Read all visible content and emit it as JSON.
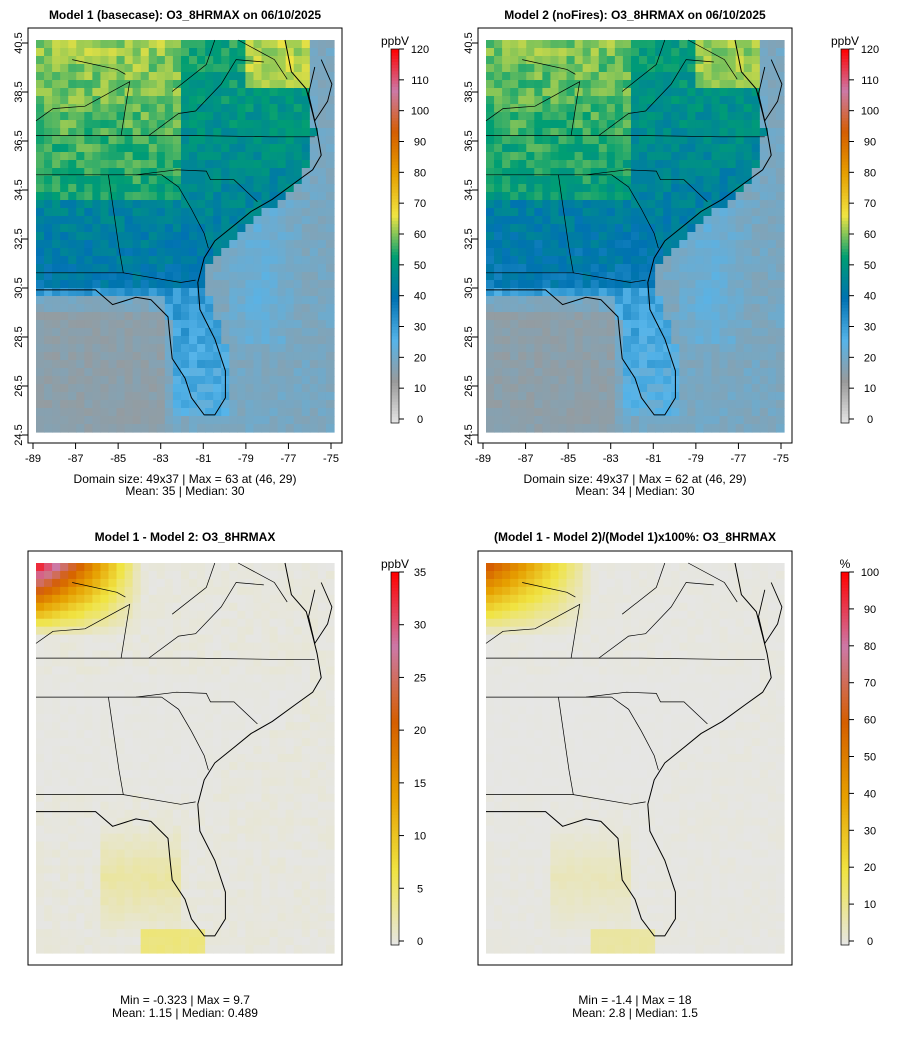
{
  "chart_data": [
    {
      "type": "heatmap",
      "title": "Model 1 (basecase): O3_8HRMAX on 06/10/2025",
      "x_ticks": [
        "-89",
        "-87",
        "-85",
        "-83",
        "-81",
        "-79",
        "-77",
        "-75"
      ],
      "y_ticks": [
        "24.5",
        "26.5",
        "28.5",
        "30.5",
        "32.5",
        "34.5",
        "36.5",
        "38.5",
        "40.5"
      ],
      "xlim": [
        -89,
        -75
      ],
      "ylim": [
        24.5,
        40.5
      ],
      "colorbar": {
        "label": "ppbV",
        "ticks": [
          "0",
          "10",
          "20",
          "30",
          "40",
          "50",
          "60",
          "70",
          "80",
          "90",
          "100",
          "110",
          "120"
        ],
        "range": [
          0,
          120
        ]
      },
      "stat_line1": "Domain size: 49x37 | Max = 63 at (46, 29)",
      "stat_line2": "Mean: 35 |  Median: 30",
      "domain_size": [
        49,
        37
      ],
      "max": 63,
      "max_location": [
        46,
        29
      ],
      "mean": 35,
      "median": 30
    },
    {
      "type": "heatmap",
      "title": "Model 2 (noFires): O3_8HRMAX on 06/10/2025",
      "x_ticks": [
        "-89",
        "-87",
        "-85",
        "-83",
        "-81",
        "-79",
        "-77",
        "-75"
      ],
      "y_ticks": [
        "24.5",
        "26.5",
        "28.5",
        "30.5",
        "32.5",
        "34.5",
        "36.5",
        "38.5",
        "40.5"
      ],
      "xlim": [
        -89,
        -75
      ],
      "ylim": [
        24.5,
        40.5
      ],
      "colorbar": {
        "label": "ppbV",
        "ticks": [
          "0",
          "10",
          "20",
          "30",
          "40",
          "50",
          "60",
          "70",
          "80",
          "90",
          "100",
          "110",
          "120"
        ],
        "range": [
          0,
          120
        ]
      },
      "stat_line1": "Domain size: 49x37 | Max = 62 at (46, 29)",
      "stat_line2": "Mean: 34 |  Median: 30",
      "domain_size": [
        49,
        37
      ],
      "max": 62,
      "max_location": [
        46,
        29
      ],
      "mean": 34,
      "median": 30
    },
    {
      "type": "heatmap",
      "title": "Model 1 - Model 2: O3_8HRMAX",
      "colorbar": {
        "label": "ppbV",
        "ticks": [
          "0",
          "5",
          "10",
          "15",
          "20",
          "25",
          "30",
          "35"
        ],
        "range": [
          0,
          35
        ]
      },
      "stat_line1": "Min = -0.323 | Max = 9.7",
      "stat_line2": "Mean: 1.15 |  Median: 0.489",
      "min": -0.323,
      "max": 9.7,
      "mean": 1.15,
      "median": 0.489
    },
    {
      "type": "heatmap",
      "title": "(Model 1 - Model 2)/(Model 1)x100%: O3_8HRMAX",
      "colorbar": {
        "label": "%",
        "ticks": [
          "0",
          "10",
          "20",
          "30",
          "40",
          "50",
          "60",
          "70",
          "80",
          "90",
          "100"
        ],
        "range": [
          0,
          100
        ]
      },
      "stat_line1": "Min = -1.4 | Max = 18",
      "stat_line2": "Mean: 2.8 |  Median: 1.5",
      "min": -1.4,
      "max": 18,
      "mean": 2.8,
      "median": 1.5
    }
  ],
  "colors": {
    "abs_scale": [
      "#e6e6e6",
      "#9a9a9a",
      "#56b4e9",
      "#0072b2",
      "#009e73",
      "#f0e442",
      "#e69f00",
      "#d55e00",
      "#cc79a7",
      "#ff0000"
    ],
    "diff_scale": [
      "#e6e6e6",
      "#f0e442",
      "#e69f00",
      "#d55e00",
      "#cc79a7",
      "#ff0000"
    ]
  }
}
